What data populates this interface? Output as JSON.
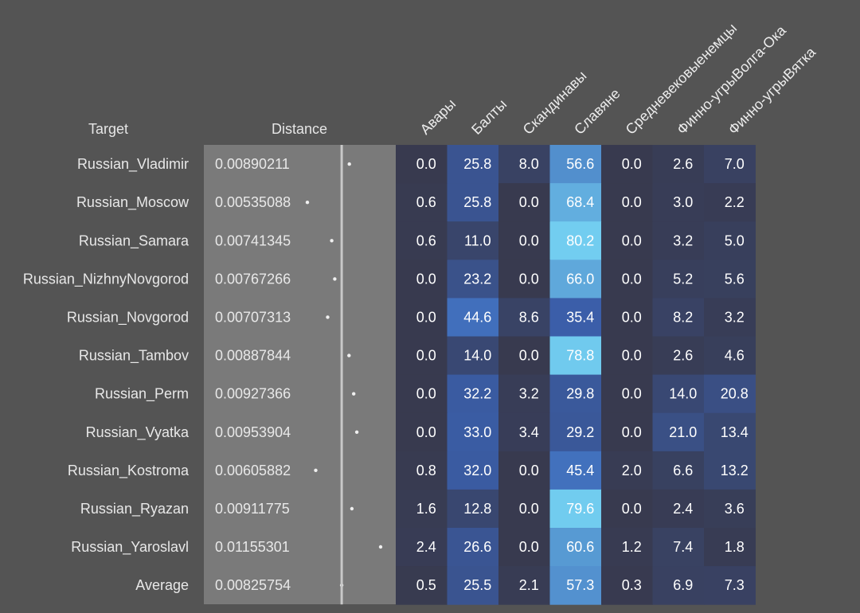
{
  "header": {
    "target_label": "Target",
    "distance_label": "Distance"
  },
  "chart_data": {
    "type": "heatmap",
    "columns": [
      "Авары",
      "Балты",
      "Скандинавы",
      "Славяне",
      "Средневековыенемцы",
      "Финно-угрыВолга-Ока",
      "Финно-угрыВятка"
    ],
    "rows": [
      {
        "target": "Russian_Vladimir",
        "distance": "0.00890211",
        "distance_value": 0.00890211,
        "values": [
          "0.0",
          "25.8",
          "8.0",
          "56.6",
          "0.0",
          "2.6",
          "7.0"
        ]
      },
      {
        "target": "Russian_Moscow",
        "distance": "0.00535088",
        "distance_value": 0.00535088,
        "values": [
          "0.6",
          "25.8",
          "0.0",
          "68.4",
          "0.0",
          "3.0",
          "2.2"
        ]
      },
      {
        "target": "Russian_Samara",
        "distance": "0.00741345",
        "distance_value": 0.00741345,
        "values": [
          "0.6",
          "11.0",
          "0.0",
          "80.2",
          "0.0",
          "3.2",
          "5.0"
        ]
      },
      {
        "target": "Russian_NizhnyNovgorod",
        "distance": "0.00767266",
        "distance_value": 0.00767266,
        "values": [
          "0.0",
          "23.2",
          "0.0",
          "66.0",
          "0.0",
          "5.2",
          "5.6"
        ]
      },
      {
        "target": "Russian_Novgorod",
        "distance": "0.00707313",
        "distance_value": 0.00707313,
        "values": [
          "0.0",
          "44.6",
          "8.6",
          "35.4",
          "0.0",
          "8.2",
          "3.2"
        ]
      },
      {
        "target": "Russian_Tambov",
        "distance": "0.00887844",
        "distance_value": 0.00887844,
        "values": [
          "0.0",
          "14.0",
          "0.0",
          "78.8",
          "0.0",
          "2.6",
          "4.6"
        ]
      },
      {
        "target": "Russian_Perm",
        "distance": "0.00927366",
        "distance_value": 0.00927366,
        "values": [
          "0.0",
          "32.2",
          "3.2",
          "29.8",
          "0.0",
          "14.0",
          "20.8"
        ]
      },
      {
        "target": "Russian_Vyatka",
        "distance": "0.00953904",
        "distance_value": 0.00953904,
        "values": [
          "0.0",
          "33.0",
          "3.4",
          "29.2",
          "0.0",
          "21.0",
          "13.4"
        ]
      },
      {
        "target": "Russian_Kostroma",
        "distance": "0.00605882",
        "distance_value": 0.00605882,
        "values": [
          "0.8",
          "32.0",
          "0.0",
          "45.4",
          "2.0",
          "6.6",
          "13.2"
        ]
      },
      {
        "target": "Russian_Ryazan",
        "distance": "0.00911775",
        "distance_value": 0.00911775,
        "values": [
          "1.6",
          "12.8",
          "0.0",
          "79.6",
          "0.0",
          "2.4",
          "3.6"
        ]
      },
      {
        "target": "Russian_Yaroslavl",
        "distance": "0.01155301",
        "distance_value": 0.01155301,
        "values": [
          "2.4",
          "26.6",
          "0.0",
          "60.6",
          "1.2",
          "7.4",
          "1.8"
        ]
      },
      {
        "target": "Average",
        "distance": "0.00825754",
        "distance_value": 0.00825754,
        "values": [
          "0.5",
          "25.5",
          "2.1",
          "57.3",
          "0.3",
          "6.9",
          "7.3"
        ]
      }
    ],
    "distance_reference": 0.00825754,
    "colors": {
      "background": "#545454",
      "distance_panel": "#7a7a7a",
      "low": "#383a4f",
      "mid": "#3b63b5",
      "high": "#72cdf0"
    }
  }
}
